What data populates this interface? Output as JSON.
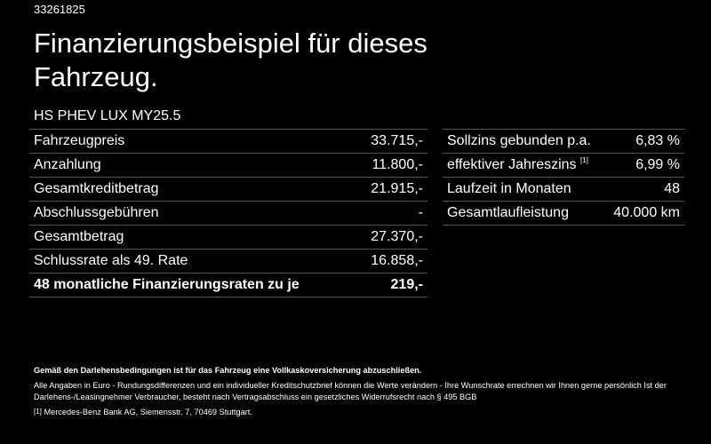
{
  "offer_id": "33261825",
  "headline": "Finanzierungsbeispiel für dieses Fahrzeug.",
  "model": "HS PHEV LUX MY25.5",
  "left_rows": [
    {
      "label": "Fahrzeugpreis",
      "value": "33.715,-"
    },
    {
      "label": "Anzahlung",
      "value": "11.800,-"
    },
    {
      "label": "Gesamtkreditbetrag",
      "value": "21.915,-"
    },
    {
      "label": "Abschlussgebühren",
      "value": "-"
    },
    {
      "label": "Gesamtbetrag",
      "value": "27.370,-"
    },
    {
      "label": "Schlussrate als 49. Rate",
      "value": "16.858,-"
    },
    {
      "label": "48 monatliche Finanzierungsraten zu je",
      "value": "219,-"
    }
  ],
  "right_rows": [
    {
      "label": "Sollzins gebunden p.a.",
      "value": "6,83 %"
    },
    {
      "label": "effektiver Jahreszins",
      "footnote": "[1]",
      "value": "6,99 %"
    },
    {
      "label": "Laufzeit in Monaten",
      "value": "48"
    },
    {
      "label": "Gesamtlaufleistung",
      "value": "40.000 km"
    }
  ],
  "notes": {
    "insurance": "Gemäß den Darlehensbedingungen ist für das Fahrzeug eine Vollkaskoversicherung abzuschließen.",
    "disclaimer": "Alle Angaben in Euro - Rundungsdifferenzen und ein individueller Kreditschutzbrief können die Werte verändern - Ihre Wunschrate errechnen wir Ihnen gerne persönlich Ist der Darlehens-/Leasingnehmer Verbraucher, besteht nach Vertragsabschluss ein gesetzliches Widerrufsrecht nach § 495 BGB",
    "footnote_marker": "[1]",
    "footnote_text": "Mercedes-Benz Bank AG, Siemensstr. 7, 70469 Stuttgart."
  },
  "colors": {
    "background": "#000000",
    "text": "#ffffff",
    "divider": "#555555"
  }
}
